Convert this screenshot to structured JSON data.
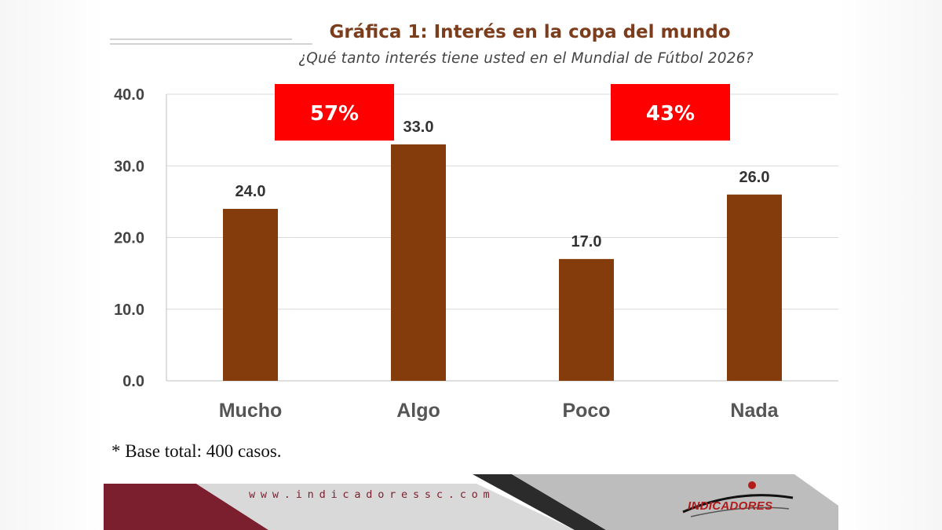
{
  "title": "Gráfica 1: Interés en la copa del mundo",
  "subtitle": "¿Qué tanto interés tiene usted en el Mundial de Fútbol 2026?",
  "note": "* Base total: 400 casos.",
  "footer": {
    "url": "www.indicadoressc.com",
    "logo_text": "INDICADORES"
  },
  "colors": {
    "bar": "#843c0c",
    "callout": "#ff0000",
    "title": "#7b3d1c",
    "footer_maroon": "#7b1f2e"
  },
  "chart_data": {
    "type": "bar",
    "categories": [
      "Mucho",
      "Algo",
      "Poco",
      "Nada"
    ],
    "values": [
      24.0,
      33.0,
      17.0,
      26.0
    ],
    "data_labels": [
      "24.0",
      "33.0",
      "17.0",
      "26.0"
    ],
    "ylim": [
      0,
      40
    ],
    "yticks": [
      "0.0",
      "10.0",
      "20.0",
      "30.0",
      "40.0"
    ],
    "grid": true,
    "callouts": [
      {
        "label": "57%",
        "spans": [
          "Mucho",
          "Algo"
        ]
      },
      {
        "label": "43%",
        "spans": [
          "Poco",
          "Nada"
        ]
      }
    ]
  }
}
